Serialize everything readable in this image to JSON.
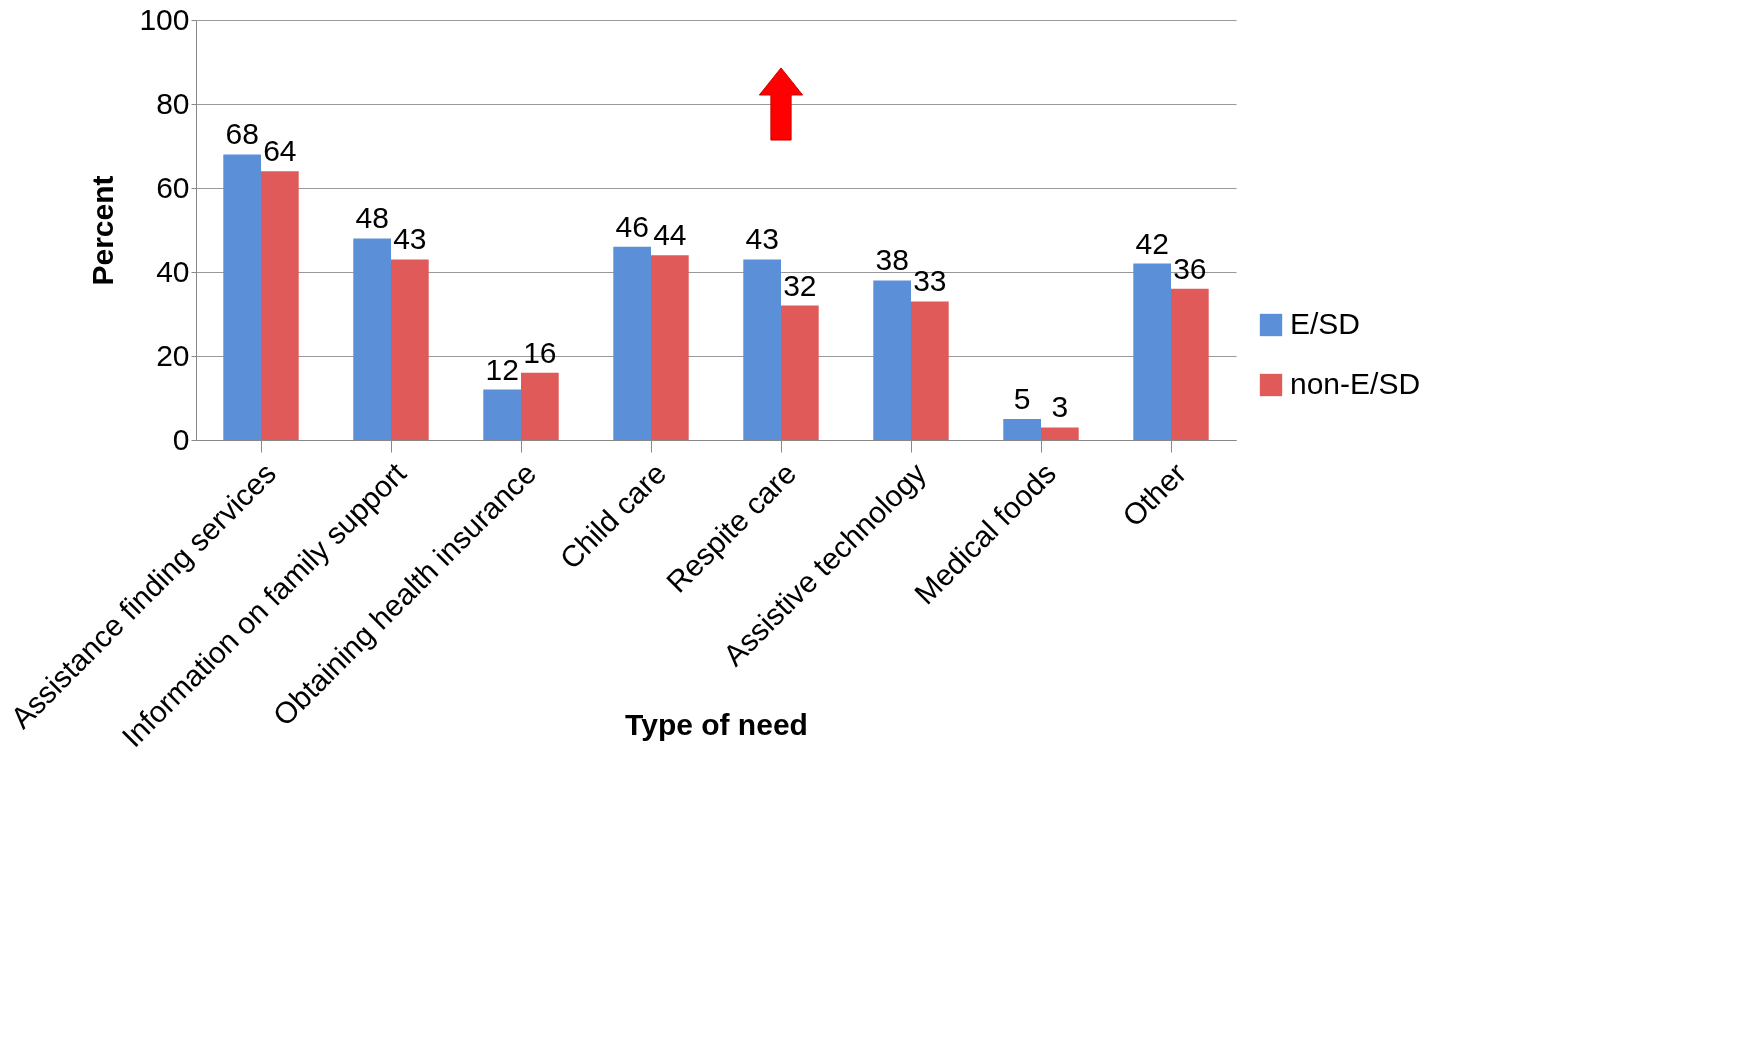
{
  "chart_data": {
    "type": "bar",
    "xlabel": "Type of need",
    "ylabel": "Percent",
    "categories": [
      "Assistance finding services",
      "Information on family support",
      "Obtaining health insurance",
      "Child care",
      "Respite care",
      "Assistive technology",
      "Medical foods",
      "Other"
    ],
    "series": [
      {
        "name": "E/SD",
        "color": "#5b8fd8",
        "values": [
          68,
          48,
          12,
          46,
          43,
          38,
          5,
          42
        ]
      },
      {
        "name": "non-E/SD",
        "color": "#e05a5a",
        "values": [
          64,
          43,
          16,
          44,
          32,
          33,
          3,
          36
        ]
      }
    ],
    "ylim": [
      0,
      100
    ],
    "yticks": [
      0,
      20,
      40,
      60,
      80,
      100
    ],
    "grid": "y",
    "legend": "bottom right",
    "data_labels": true
  }
}
